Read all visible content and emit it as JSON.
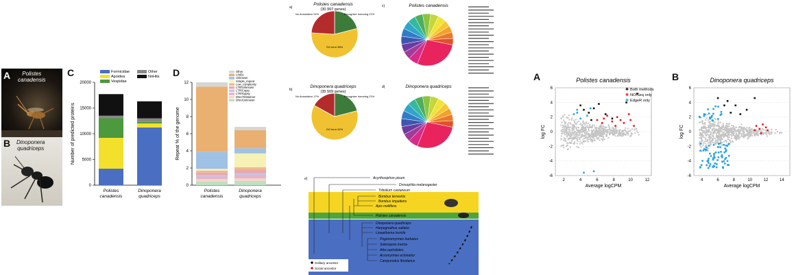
{
  "panelA": {
    "letter": "A",
    "species": "Polistes canadensis",
    "line1": "Polistes",
    "line2": "canadensis"
  },
  "panelB": {
    "letter": "B",
    "line1": "Dinoponera",
    "line2": "quadriceps"
  },
  "panelC": {
    "letter": "C",
    "ylabel": "Number of predicted proteins",
    "colors": {
      "Formicidae": "#4a6fc2",
      "Apoidea": "#f3e02a",
      "Vespidae": "#4c9a3d",
      "Other": "#888888",
      "NoHits": "#111111"
    },
    "chart_data": {
      "type": "bar",
      "categories": [
        "Polistes canadensis",
        "Dinoponera quadriceps"
      ],
      "cat_line1": [
        "Polistes",
        "Dinoponera"
      ],
      "cat_line2": [
        "canadensis",
        "quadriceps"
      ],
      "series": [
        {
          "name": "Formicidae",
          "values": [
            3200,
            11200
          ]
        },
        {
          "name": "Apoidea",
          "values": [
            6000,
            800
          ]
        },
        {
          "name": "Vespidae",
          "values": [
            3800,
            300
          ]
        },
        {
          "name": "Other",
          "values": [
            500,
            700
          ]
        },
        {
          "name": "NoHits",
          "values": [
            4200,
            3300
          ]
        }
      ],
      "yticks": [
        "0",
        "5000",
        "10000",
        "15000",
        "20000"
      ],
      "ylim": [
        0,
        20000
      ]
    }
  },
  "panelD": {
    "letter": "D",
    "ylabel": "Repeat % of the genome",
    "chart_data": {
      "type": "bar",
      "categories": [
        "Polistes canadensis",
        "Dinoponera quadriceps"
      ],
      "cat_line1": [
        "Polistes",
        "Dinoponera"
      ],
      "cat_line2": [
        "canadensis",
        "quadriceps"
      ],
      "series": [
        {
          "name": "DNA/Unknown",
          "color": "#bde0c0",
          "values": [
            0.4,
            0.5
          ]
        },
        {
          "name": "DNA/TcMariner",
          "color": "#f7d3c8",
          "values": [
            0.3,
            0.3
          ]
        },
        {
          "name": "LTR/Gypsy",
          "color": "#e6b3c9",
          "values": [
            0.3,
            0.4
          ]
        },
        {
          "name": "LTR/Copia",
          "color": "#c4c4e8",
          "values": [
            0.2,
            0.2
          ]
        },
        {
          "name": "LTR/Unknown",
          "color": "#e8a9a9",
          "values": [
            0.3,
            0.4
          ]
        },
        {
          "name": "Low_complexity",
          "color": "#f2b98f",
          "values": [
            0.2,
            0.3
          ]
        },
        {
          "name": "Simple_repeat",
          "color": "#f6f2b5",
          "values": [
            0.2,
            1.6
          ]
        },
        {
          "name": "Unknown",
          "color": "#9fc1e3",
          "values": [
            2.0,
            0.6
          ]
        },
        {
          "name": "LINEs",
          "color": "#e9b072",
          "values": [
            7.6,
            2.1
          ]
        },
        {
          "name": "Other",
          "color": "#d6d6d6",
          "values": [
            0.5,
            0.4
          ]
        }
      ],
      "yticks": [
        "0",
        "2",
        "4",
        "6",
        "8",
        "10",
        "12"
      ],
      "ylim": [
        0,
        12
      ]
    }
  },
  "pies": {
    "a_label": "a)",
    "a_title": "Polistes canadensis",
    "a_sub": "(30 997 genes)",
    "b_label": "b)",
    "b_title": "Dinoponera quadriceps",
    "b_sub": "(35 509 genes)",
    "c_label": "c)",
    "c_title": "Polistes canadensis",
    "d_label": "d)",
    "d_title": "Dinoponera quadriceps",
    "chart_data": [
      {
        "type": "pie",
        "labels": [
          "Recognize homolog",
          "GO term",
          "No Annotation"
        ],
        "values": [
          21,
          55,
          24
        ],
        "colors": [
          "#3d7b3b",
          "#f0c232",
          "#b32b2b"
        ]
      },
      {
        "type": "pie",
        "labels": [
          "Recognize homolog",
          "GO term",
          "No Annotation"
        ],
        "values": [
          21,
          62,
          17
        ],
        "colors": [
          "#3d7b3b",
          "#f0c232",
          "#b32b2b"
        ]
      }
    ],
    "slice_colors": [
      "#e8235e",
      "#d62b8a",
      "#a23a9a",
      "#6a3ca0",
      "#3e56b0",
      "#2f7dc6",
      "#2fa5c9",
      "#35b7a0",
      "#4fae5a",
      "#8bc440",
      "#c4d63a",
      "#f0e33a",
      "#f6c830",
      "#f2a12a",
      "#ea7a27",
      "#e0502a"
    ],
    "slice_values": [
      28,
      6,
      5,
      5,
      5,
      5,
      5,
      5,
      5,
      5,
      5,
      5,
      4,
      4,
      4,
      4
    ]
  },
  "phylo": {
    "label": "e)",
    "taxa": [
      "Acyrthosiphon pisum",
      "Drosophila melanogaster",
      "Tribolium castaneum",
      "Bombus terrestris",
      "Bombus impatiens",
      "Apis mellifera",
      "Polistes canadensis",
      "Dinoponera quadriceps",
      "Harpegnathos saltator",
      "Linepithema humile",
      "Pogonomyrmex barbatus",
      "Solenopsis invicta",
      "Atta cephalotes",
      "Acromyrmex echinatior",
      "Camponotus floridanus"
    ],
    "legend": [
      "Solitary ancestor",
      "Social ancestor"
    ],
    "colors": {
      "bees": "#f5d422",
      "wasp": "#4ea53d",
      "ants": "#4a6fc2"
    }
  },
  "maA": {
    "letter": "A",
    "title": "Polistes canadensis",
    "xlabel": "Average logCPM",
    "ylabel": "log FC",
    "legend": [
      "Both methods",
      "NOISeq only",
      "EdgeR only"
    ],
    "legend_colors": [
      "#111111",
      "#e01b24",
      "#29a3e0"
    ],
    "xticks": [
      "2",
      "4",
      "6",
      "8",
      "10",
      "12"
    ],
    "yticks": [
      "-6",
      "-4",
      "-2",
      "0",
      "2",
      "4",
      "6"
    ]
  },
  "maB": {
    "letter": "B",
    "title": "Dinoponera quadriceps",
    "xlabel": "Average logCPM",
    "ylabel": "log FC",
    "xticks": [
      "4",
      "6",
      "8",
      "10",
      "12",
      "14"
    ],
    "yticks": [
      "-6",
      "-4",
      "-2",
      "0",
      "2",
      "4",
      "6"
    ]
  }
}
